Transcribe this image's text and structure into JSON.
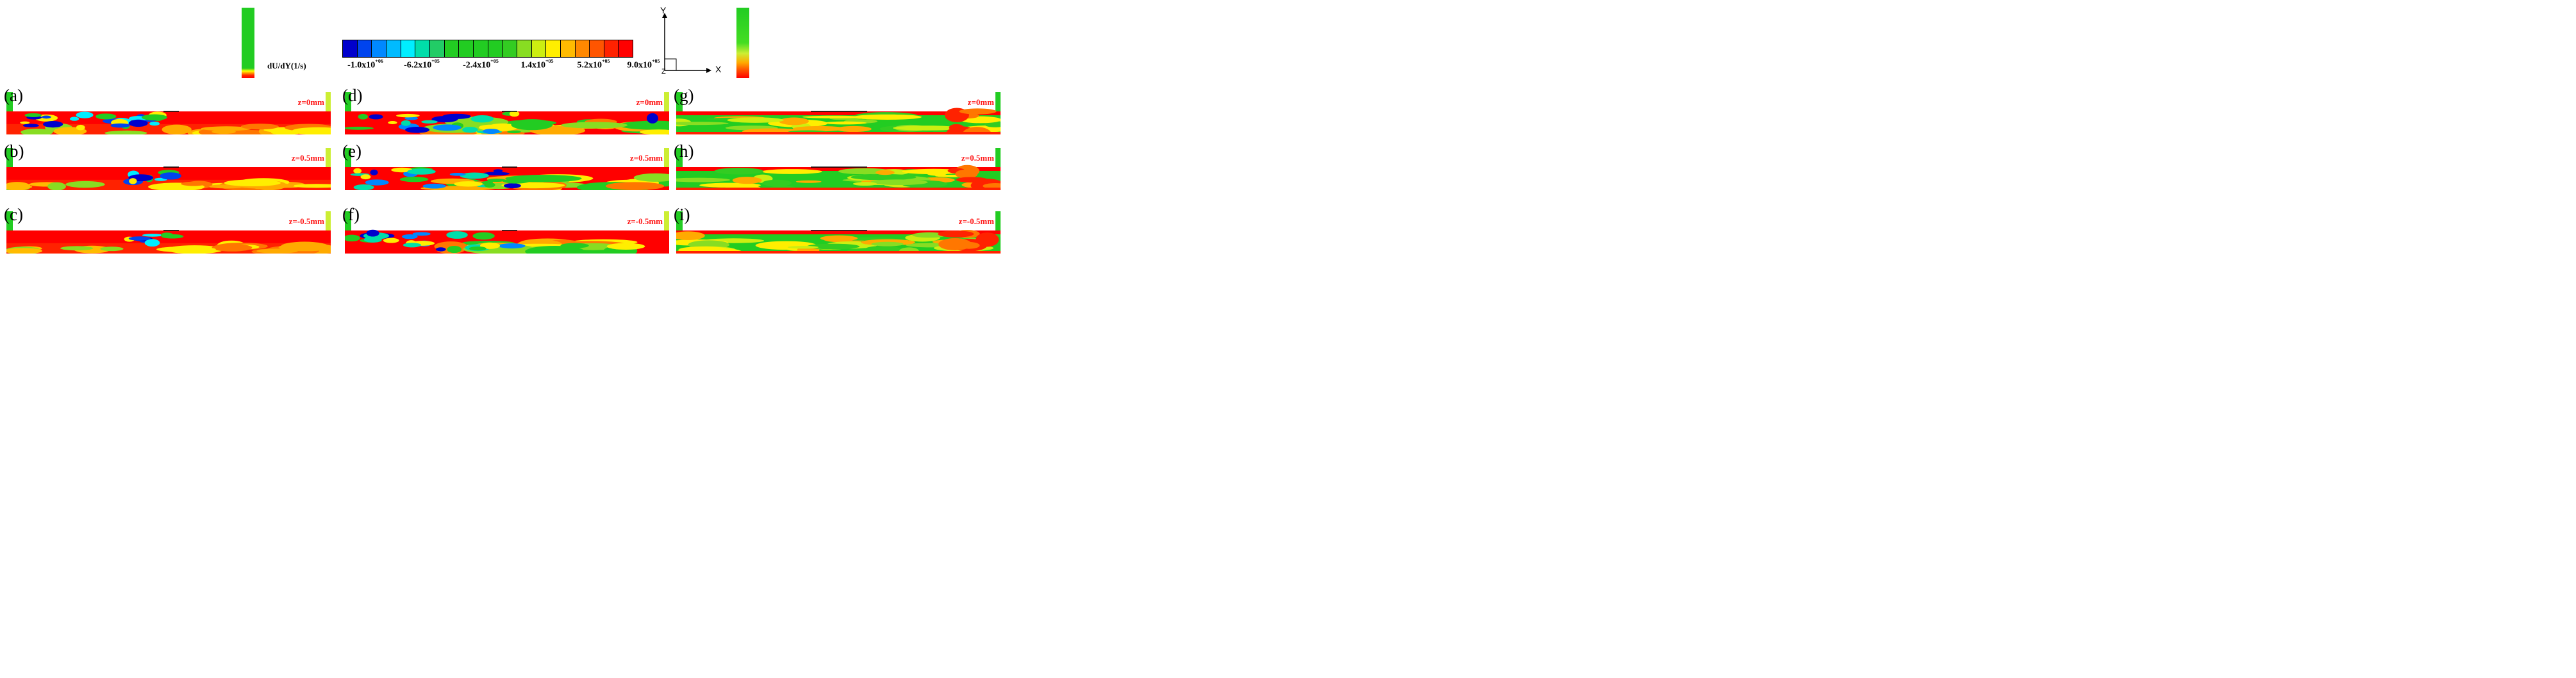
{
  "colorbar": {
    "title": "dU/dY(1/s)",
    "ticks": [
      {
        "text": "-1.0x10",
        "exp": "+06"
      },
      {
        "text": "-6.2x10",
        "exp": "+05"
      },
      {
        "text": "-2.4x10",
        "exp": "+05"
      },
      {
        "text": "1.4x10",
        "exp": "+05"
      },
      {
        "text": "5.2x10",
        "exp": "+05"
      },
      {
        "text": "9.0x10",
        "exp": "+05"
      }
    ],
    "colors": [
      "#0000cc",
      "#0044ee",
      "#0088ff",
      "#00bbff",
      "#00eeff",
      "#00ddaa",
      "#22cc66",
      "#22cc22",
      "#22cc22",
      "#22cc22",
      "#22cc22",
      "#33cc22",
      "#88dd22",
      "#ccee11",
      "#ffee00",
      "#ffbb00",
      "#ff8800",
      "#ff5500",
      "#ff2200",
      "#ff0000"
    ]
  },
  "axes": {
    "y": "Y",
    "x": "X",
    "z": "Z"
  },
  "panels": [
    {
      "label": "(a)",
      "z": "z=0mm",
      "scheme": "redlow"
    },
    {
      "label": "(b)",
      "z": "z=0.5mm",
      "scheme": "red"
    },
    {
      "label": "(c)",
      "z": "z=-0.5mm",
      "scheme": "red"
    },
    {
      "label": "(d)",
      "z": "z=0mm",
      "scheme": "mixed"
    },
    {
      "label": "(e)",
      "z": "z=0.5mm",
      "scheme": "mixed"
    },
    {
      "label": "(f)",
      "z": "z=-0.5mm",
      "scheme": "mixed"
    },
    {
      "label": "(g)",
      "z": "z=0mm",
      "scheme": "green"
    },
    {
      "label": "(h)",
      "z": "z=0.5mm",
      "scheme": "green"
    },
    {
      "label": "(i)",
      "z": "z=-0.5mm",
      "scheme": "green"
    }
  ]
}
